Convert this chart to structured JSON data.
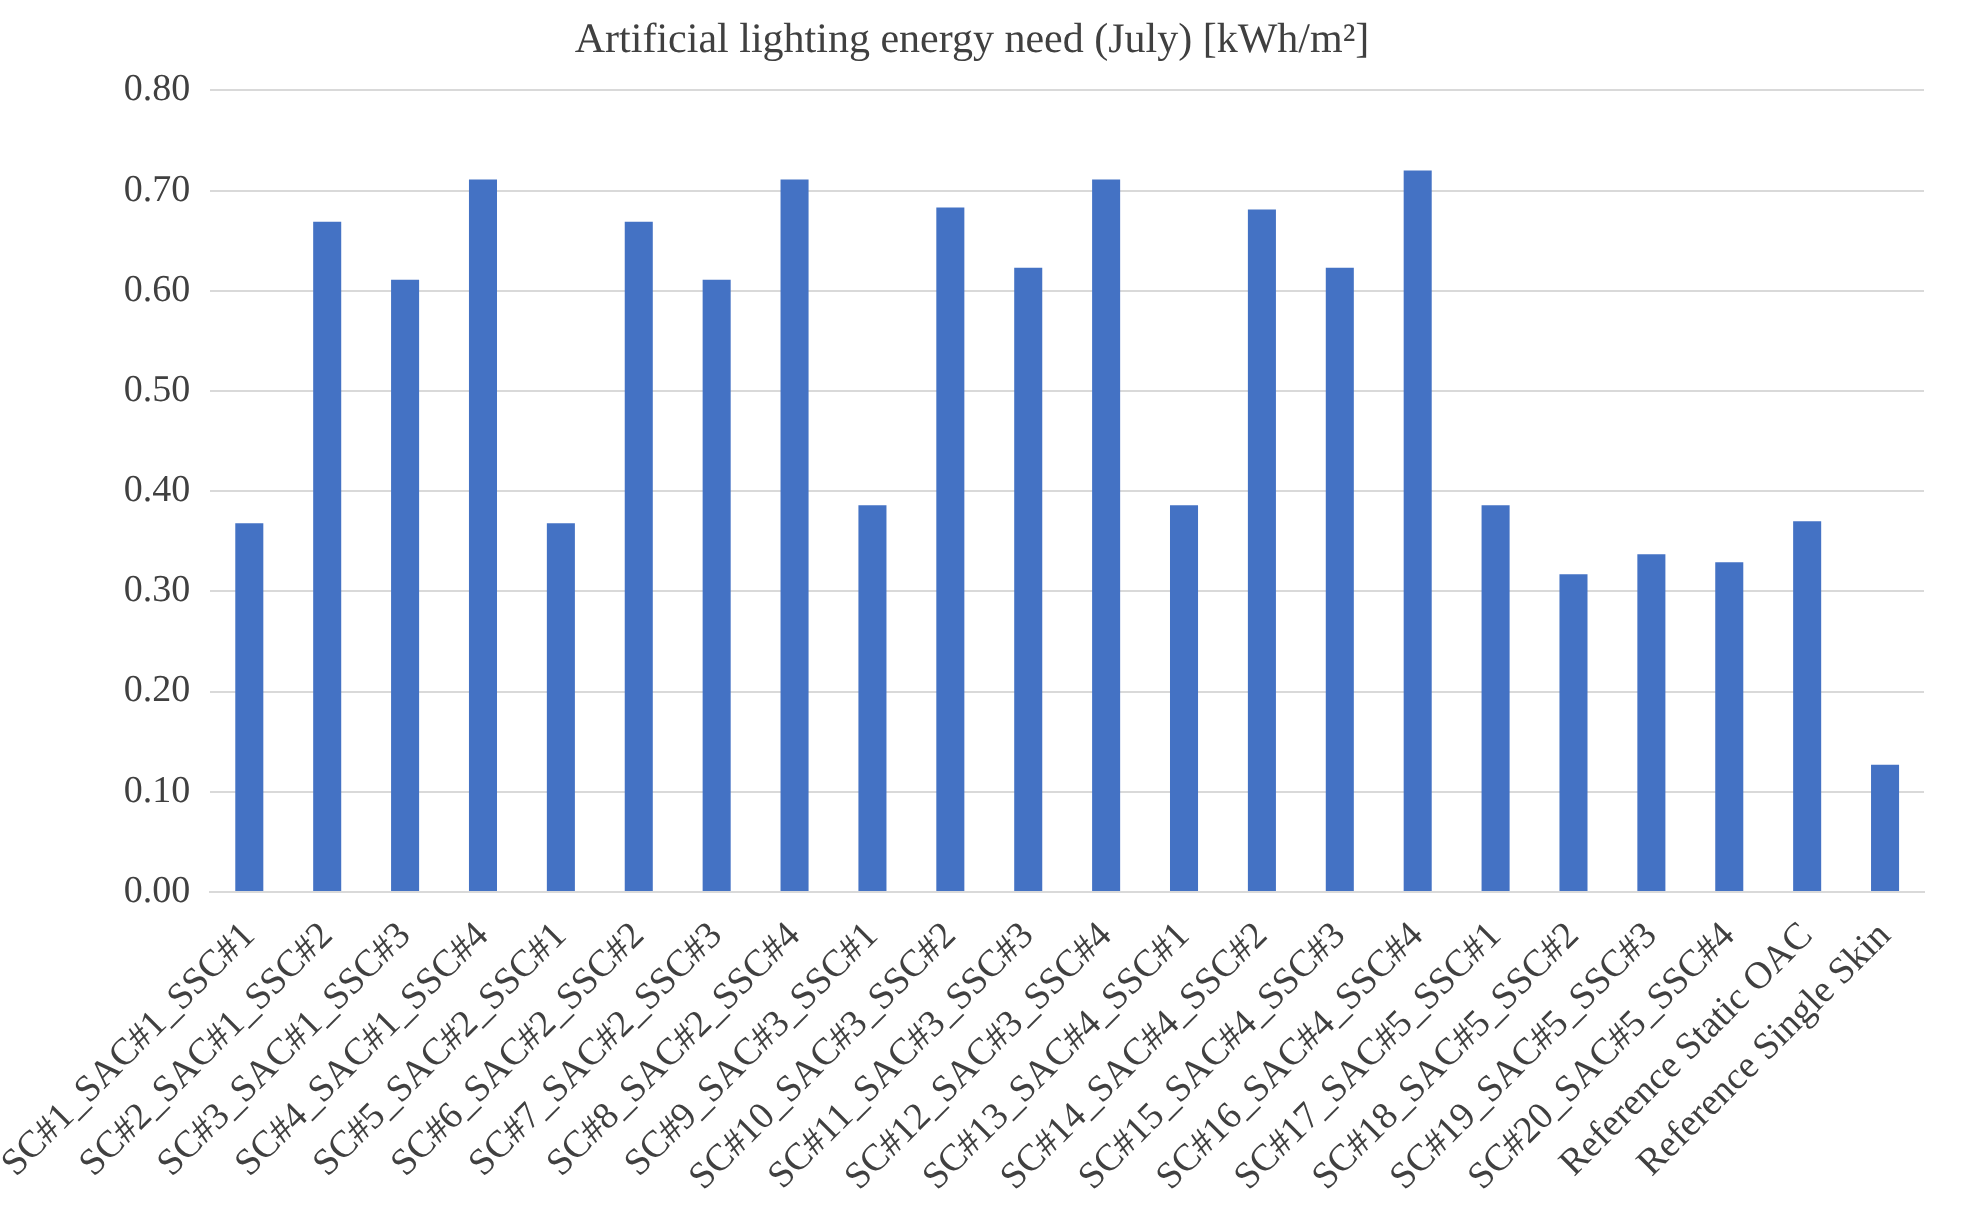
{
  "chart_data": {
    "type": "bar",
    "title": "Artificial lighting energy need (July) [kWh/m²]",
    "categories": [
      "SC#1_SAC#1_SSC#1",
      "SC#2_SAC#1_SSC#2",
      "SC#3_SAC#1_SSC#3",
      "SC#4_SAC#1_SSC#4",
      "SC#5_SAC#2_SSC#1",
      "SC#6_SAC#2_SSC#2",
      "SC#7_SAC#2_SSC#3",
      "SC#8_SAC#2_SSC#4",
      "SC#9_SAC#3_SSC#1",
      "SC#10_SAC#3_SSC#2",
      "SC#11_SAC#3_SSC#3",
      "SC#12_SAC#3_SSC#4",
      "SC#13_SAC#4_SSC#1",
      "SC#14_SAC#4_SSC#2",
      "SC#15_SAC#4_SSC#3",
      "SC#16_SAC#4_SSC#4",
      "SC#17_SAC#5_SSC#1",
      "SC#18_SAC#5_SSC#2",
      "SC#19_SAC#5_SSC#3",
      "SC#20_SAC#5_SSC#4",
      "Reference Static OAC",
      "Reference Single Skin"
    ],
    "values": [
      0.368,
      0.669,
      0.611,
      0.711,
      0.368,
      0.669,
      0.611,
      0.711,
      0.386,
      0.683,
      0.623,
      0.711,
      0.386,
      0.681,
      0.623,
      0.72,
      0.386,
      0.317,
      0.337,
      0.329,
      0.37,
      0.127
    ],
    "color": "#4472c4",
    "ylim": [
      0,
      0.8
    ],
    "yticks": [
      {
        "value": 0,
        "label": "0.00"
      },
      {
        "value": 0.1,
        "label": "0.10"
      },
      {
        "value": 0.2,
        "label": "0.20"
      },
      {
        "value": 0.3,
        "label": "0.30"
      },
      {
        "value": 0.4,
        "label": "0.40"
      },
      {
        "value": 0.5,
        "label": "0.50"
      },
      {
        "value": 0.6,
        "label": "0.60"
      },
      {
        "value": 0.7,
        "label": "0.70"
      },
      {
        "value": 0.8,
        "label": "0.80"
      }
    ],
    "grid": "y"
  }
}
